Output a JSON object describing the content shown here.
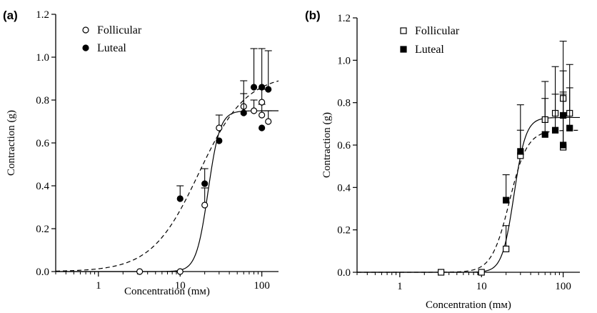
{
  "chart_data": [
    {
      "type": "scatter",
      "panel_label": "(a)",
      "xlabel": "Concentration (mм)",
      "ylabel": "Contraction (g)",
      "x_scale": "log",
      "xlim": [
        0.3,
        160
      ],
      "ylim": [
        0,
        1.2
      ],
      "x_ticks": [
        1,
        10,
        100
      ],
      "x_tick_labels": [
        "1",
        "10",
        "100"
      ],
      "y_ticks": [
        0.0,
        0.2,
        0.4,
        0.6,
        0.8,
        1.0,
        1.2
      ],
      "y_tick_labels": [
        "0.0",
        "0.2",
        "0.4",
        "0.6",
        "0.8",
        "1.0",
        "1.2"
      ],
      "legend_position": "top-left",
      "series": [
        {
          "name": "Follicular",
          "marker": "open-circle",
          "fit_line": "solid",
          "points": [
            {
              "x": 3.2,
              "y": 0.0,
              "err": 0
            },
            {
              "x": 10,
              "y": 0.0,
              "err": 0
            },
            {
              "x": 20,
              "y": 0.31,
              "err": 0.08
            },
            {
              "x": 30,
              "y": 0.67,
              "err": 0.06
            },
            {
              "x": 60,
              "y": 0.77,
              "err": 0.06
            },
            {
              "x": 80,
              "y": 0.75,
              "err": 0.05
            },
            {
              "x": 100,
              "y": 0.79,
              "err": 0.06
            },
            {
              "x": 100,
              "y": 0.73,
              "err": 0.05
            },
            {
              "x": 120,
              "y": 0.7,
              "err": 0.05
            }
          ],
          "fit": {
            "bottom": 0,
            "top": 0.75,
            "ec50": 22,
            "hill": 6.0
          }
        },
        {
          "name": "Luteal",
          "marker": "filled-circle",
          "fit_line": "dashed",
          "points": [
            {
              "x": 10,
              "y": 0.34,
              "err": 0.06
            },
            {
              "x": 20,
              "y": 0.41,
              "err": 0.07
            },
            {
              "x": 30,
              "y": 0.61,
              "err": 0
            },
            {
              "x": 60,
              "y": 0.74,
              "err": 0.15
            },
            {
              "x": 80,
              "y": 0.86,
              "err": 0.18
            },
            {
              "x": 100,
              "y": 0.86,
              "err": 0.18
            },
            {
              "x": 100,
              "y": 0.67,
              "err": 0
            },
            {
              "x": 120,
              "y": 0.85,
              "err": 0.18
            }
          ],
          "fit": {
            "bottom": 0,
            "top": 0.92,
            "ec50": 17,
            "hill": 1.5
          }
        }
      ]
    },
    {
      "type": "scatter",
      "panel_label": "(b)",
      "xlabel": "Concentration (mм)",
      "ylabel": "Contraction (g)",
      "x_scale": "log",
      "xlim": [
        0.3,
        160
      ],
      "ylim": [
        0,
        1.2
      ],
      "x_ticks": [
        1,
        10,
        100
      ],
      "x_tick_labels": [
        "1",
        "10",
        "100"
      ],
      "y_ticks": [
        0.0,
        0.2,
        0.4,
        0.6,
        0.8,
        1.0,
        1.2
      ],
      "y_tick_labels": [
        "0.0",
        "0.2",
        "0.4",
        "0.6",
        "0.8",
        "1.0",
        "1.2"
      ],
      "legend_position": "top-left",
      "series": [
        {
          "name": "Follicular",
          "marker": "open-square",
          "fit_line": "solid",
          "points": [
            {
              "x": 3.2,
              "y": 0.0,
              "err": 0
            },
            {
              "x": 10,
              "y": 0.0,
              "err": 0
            },
            {
              "x": 20,
              "y": 0.11,
              "err": 0.11
            },
            {
              "x": 30,
              "y": 0.55,
              "err": 0.12
            },
            {
              "x": 60,
              "y": 0.72,
              "err": 0.1
            },
            {
              "x": 80,
              "y": 0.75,
              "err": 0.09
            },
            {
              "x": 100,
              "y": 0.82,
              "err": 0.13
            },
            {
              "x": 100,
              "y": 0.59,
              "err": 0.25
            },
            {
              "x": 120,
              "y": 0.75,
              "err": 0.12
            }
          ],
          "fit": {
            "bottom": 0,
            "top": 0.73,
            "ec50": 25,
            "hill": 6.0
          }
        },
        {
          "name": "Luteal",
          "marker": "filled-square",
          "fit_line": "dashed",
          "points": [
            {
              "x": 20,
              "y": 0.34,
              "err": 0.12
            },
            {
              "x": 30,
              "y": 0.57,
              "err": 0.22
            },
            {
              "x": 60,
              "y": 0.65,
              "err": 0.25
            },
            {
              "x": 80,
              "y": 0.67,
              "err": 0.3
            },
            {
              "x": 100,
              "y": 0.74,
              "err": 0.35
            },
            {
              "x": 100,
              "y": 0.6,
              "err": 0.25
            },
            {
              "x": 120,
              "y": 0.68,
              "err": 0.3
            }
          ],
          "fit": {
            "bottom": 0,
            "top": 0.67,
            "ec50": 22,
            "hill": 4.0
          }
        }
      ]
    }
  ]
}
